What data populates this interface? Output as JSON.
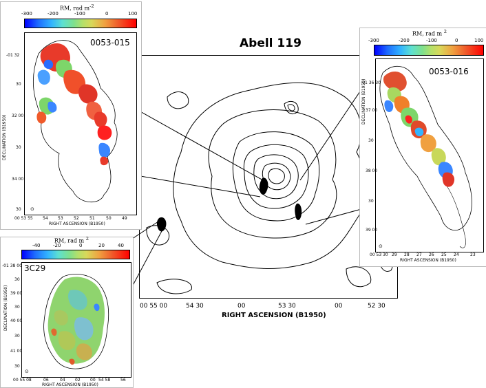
{
  "title": "Abell 119",
  "main": {
    "x_axis_label": "RIGHT ASCENSION (B1950)",
    "ra_ticks": [
      "00 55 00",
      "54 30",
      "00",
      "53 30",
      "00",
      "52 30"
    ]
  },
  "panel_0053_015": {
    "source": "0053-015",
    "colorbar_label": "RM, rad m",
    "colorbar_ticks": [
      "-300",
      "-200",
      "-100",
      "0",
      "100"
    ],
    "y_axis_label": "DECLINATION (B1950)",
    "y_ticks": [
      "-01 32",
      "30",
      "32 00",
      "30",
      "34 00",
      "30"
    ],
    "x_axis_label": "RIGHT ASCENSION (B1950)",
    "x_ticks": [
      "00 53 55",
      "54",
      "53",
      "52",
      "51",
      "50",
      "49"
    ]
  },
  "panel_0053_016": {
    "source": "0053-016",
    "colorbar_label": "RM, rad m",
    "colorbar_ticks": [
      "-300",
      "-200",
      "-100",
      "0",
      "100"
    ],
    "y_axis_label": "DECLINATION (B1950)",
    "y_ticks": [
      "-01 36 30",
      "37 00",
      "30",
      "38 00",
      "30",
      "39 00"
    ],
    "x_axis_label": "RIGHT ASCENSION (B1950)",
    "x_ticks": [
      "00 53 30",
      "29",
      "28",
      "27",
      "26",
      "25",
      "24",
      "23"
    ]
  },
  "panel_3c29": {
    "source": "3C29",
    "colorbar_label": "RM, rad m",
    "colorbar_ticks": [
      "-40",
      "-20",
      "0",
      "20",
      "40"
    ],
    "y_axis_label": "DECLINATION (B1950)",
    "y_ticks": [
      "-01 38 00",
      "30",
      "39 00",
      "30",
      "40 00",
      "30",
      "41 00",
      "30"
    ],
    "x_axis_label": "RIGHT ASCENSION (B1950)",
    "x_ticks": [
      "00 55 08",
      "06",
      "04",
      "02",
      "00",
      "54 58",
      "56"
    ]
  }
}
